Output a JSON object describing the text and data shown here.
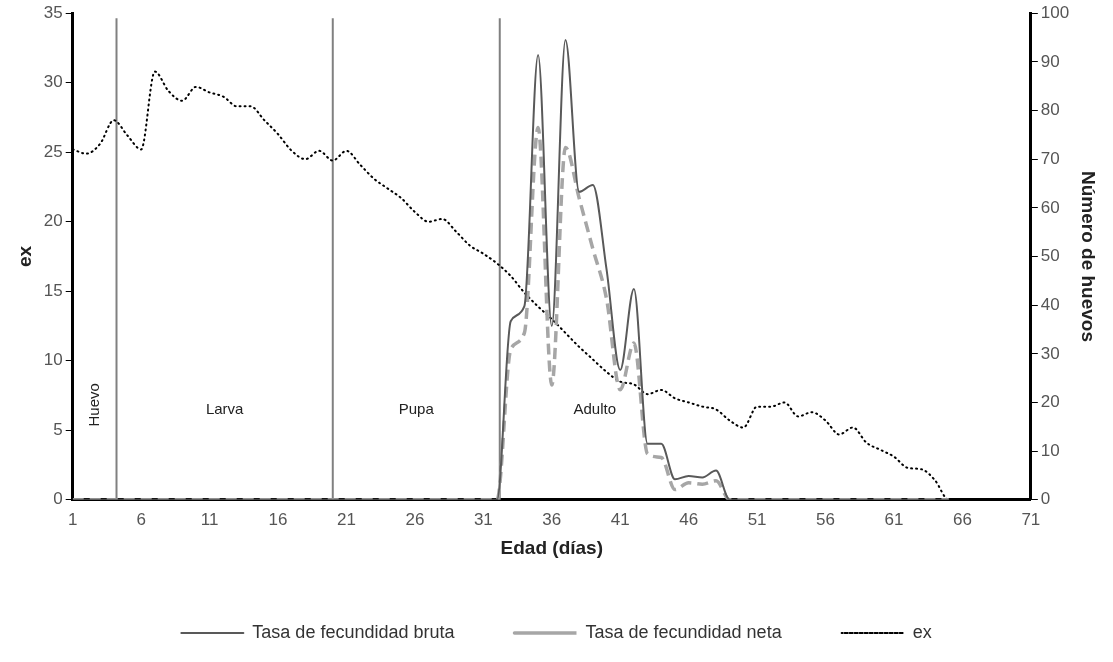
{
  "chart_data": {
    "type": "line",
    "xlabel": "Edad (días)",
    "ylabel": "ex",
    "y2label": "Número de huevos",
    "x": [
      1,
      2,
      3,
      4,
      5,
      6,
      7,
      8,
      9,
      10,
      11,
      12,
      13,
      14,
      15,
      16,
      17,
      18,
      19,
      20,
      21,
      22,
      23,
      24,
      25,
      26,
      27,
      28,
      29,
      30,
      31,
      32,
      33,
      34,
      35,
      36,
      37,
      38,
      39,
      40,
      41,
      42,
      43,
      44,
      45,
      46,
      47,
      48,
      49,
      50,
      51,
      52,
      53,
      54,
      55,
      56,
      57,
      58,
      59,
      60,
      61,
      62,
      63,
      64,
      65,
      66,
      67,
      68,
      69,
      70,
      71
    ],
    "series": [
      {
        "name": "Tasa de fecundidad bruta",
        "color": "#595959",
        "axis": "y2",
        "line_style": "solid",
        "values": [
          0,
          0,
          0,
          0,
          0,
          0,
          0,
          0,
          0,
          0,
          0,
          0,
          0,
          0,
          0,
          0,
          0,
          0,
          0,
          0,
          0,
          0,
          0,
          0,
          0,
          0,
          0,
          0,
          0,
          0,
          0,
          0,
          36.7,
          39.8,
          91.4,
          35.7,
          94.5,
          63.3,
          64.7,
          47.4,
          26.7,
          43.3,
          11.5,
          11.5,
          4.2,
          4.9,
          4.6,
          6.0,
          0,
          0,
          0,
          0,
          0,
          0,
          0,
          0,
          0,
          0,
          0,
          0,
          0,
          0,
          0,
          0,
          0,
          null,
          null,
          null,
          null,
          null,
          null
        ]
      },
      {
        "name": "Tasa de fecundidad neta",
        "color": "#a6a6a6",
        "axis": "y2",
        "line_style": "dashed",
        "values": [
          0,
          0,
          0,
          0,
          0,
          0,
          0,
          0,
          0,
          0,
          0,
          0,
          0,
          0,
          0,
          0,
          0,
          0,
          0,
          0,
          0,
          0,
          0,
          0,
          0,
          0,
          0,
          0,
          0,
          0,
          0,
          0,
          30.9,
          34.3,
          76.5,
          23.6,
          72.4,
          62.0,
          51.6,
          41.3,
          22.6,
          32.2,
          9.4,
          8.7,
          2.1,
          3.5,
          3.2,
          3.9,
          0,
          0,
          0,
          0,
          0,
          0,
          0,
          0,
          0,
          0,
          0,
          0,
          0,
          0,
          0,
          0,
          0,
          null,
          null,
          null,
          null,
          null,
          null
        ]
      },
      {
        "name": "ex",
        "color": "#000000",
        "axis": "y",
        "line_style": "dotted",
        "values": [
          25.2,
          24.9,
          25.6,
          27.3,
          26.2,
          25.2,
          30.8,
          29.4,
          28.7,
          29.7,
          29.3,
          29.0,
          28.3,
          28.3,
          27.3,
          26.3,
          25.1,
          24.5,
          25.1,
          24.4,
          25.1,
          24.1,
          23.1,
          22.4,
          21.7,
          20.7,
          20.0,
          20.2,
          19.3,
          18.3,
          17.7,
          17.0,
          16.1,
          14.9,
          13.9,
          13.0,
          12.0,
          11.0,
          10.1,
          9.2,
          8.5,
          8.3,
          7.6,
          7.9,
          7.3,
          7.0,
          6.7,
          6.5,
          5.7,
          5.2,
          6.7,
          6.7,
          7.0,
          6.0,
          6.3,
          5.7,
          4.7,
          5.2,
          4.1,
          3.6,
          3.1,
          2.3,
          2.2,
          1.4,
          0,
          0,
          0,
          0,
          0,
          0,
          0
        ]
      }
    ],
    "xlim": [
      1,
      71
    ],
    "xticks": [
      1,
      6,
      11,
      16,
      21,
      26,
      31,
      36,
      41,
      46,
      51,
      56,
      61,
      66,
      71
    ],
    "ylim": [
      0,
      35
    ],
    "yticks": [
      0,
      5,
      10,
      15,
      20,
      25,
      30,
      35
    ],
    "y2lim": [
      0,
      100
    ],
    "y2ticks": [
      0,
      10,
      20,
      30,
      40,
      50,
      60,
      70,
      80,
      90,
      100
    ],
    "ref_lines": [
      {
        "axis": "x",
        "value": 4.2,
        "color": "#808080"
      },
      {
        "axis": "x",
        "value": 20,
        "color": "#808080"
      },
      {
        "axis": "x",
        "value": 32.2,
        "color": "#808080"
      }
    ],
    "annotations": [
      "Huevo",
      "Larva",
      "Pupa",
      "Adulto"
    ],
    "grid": false,
    "legend": "bottom",
    "marker": "none"
  }
}
